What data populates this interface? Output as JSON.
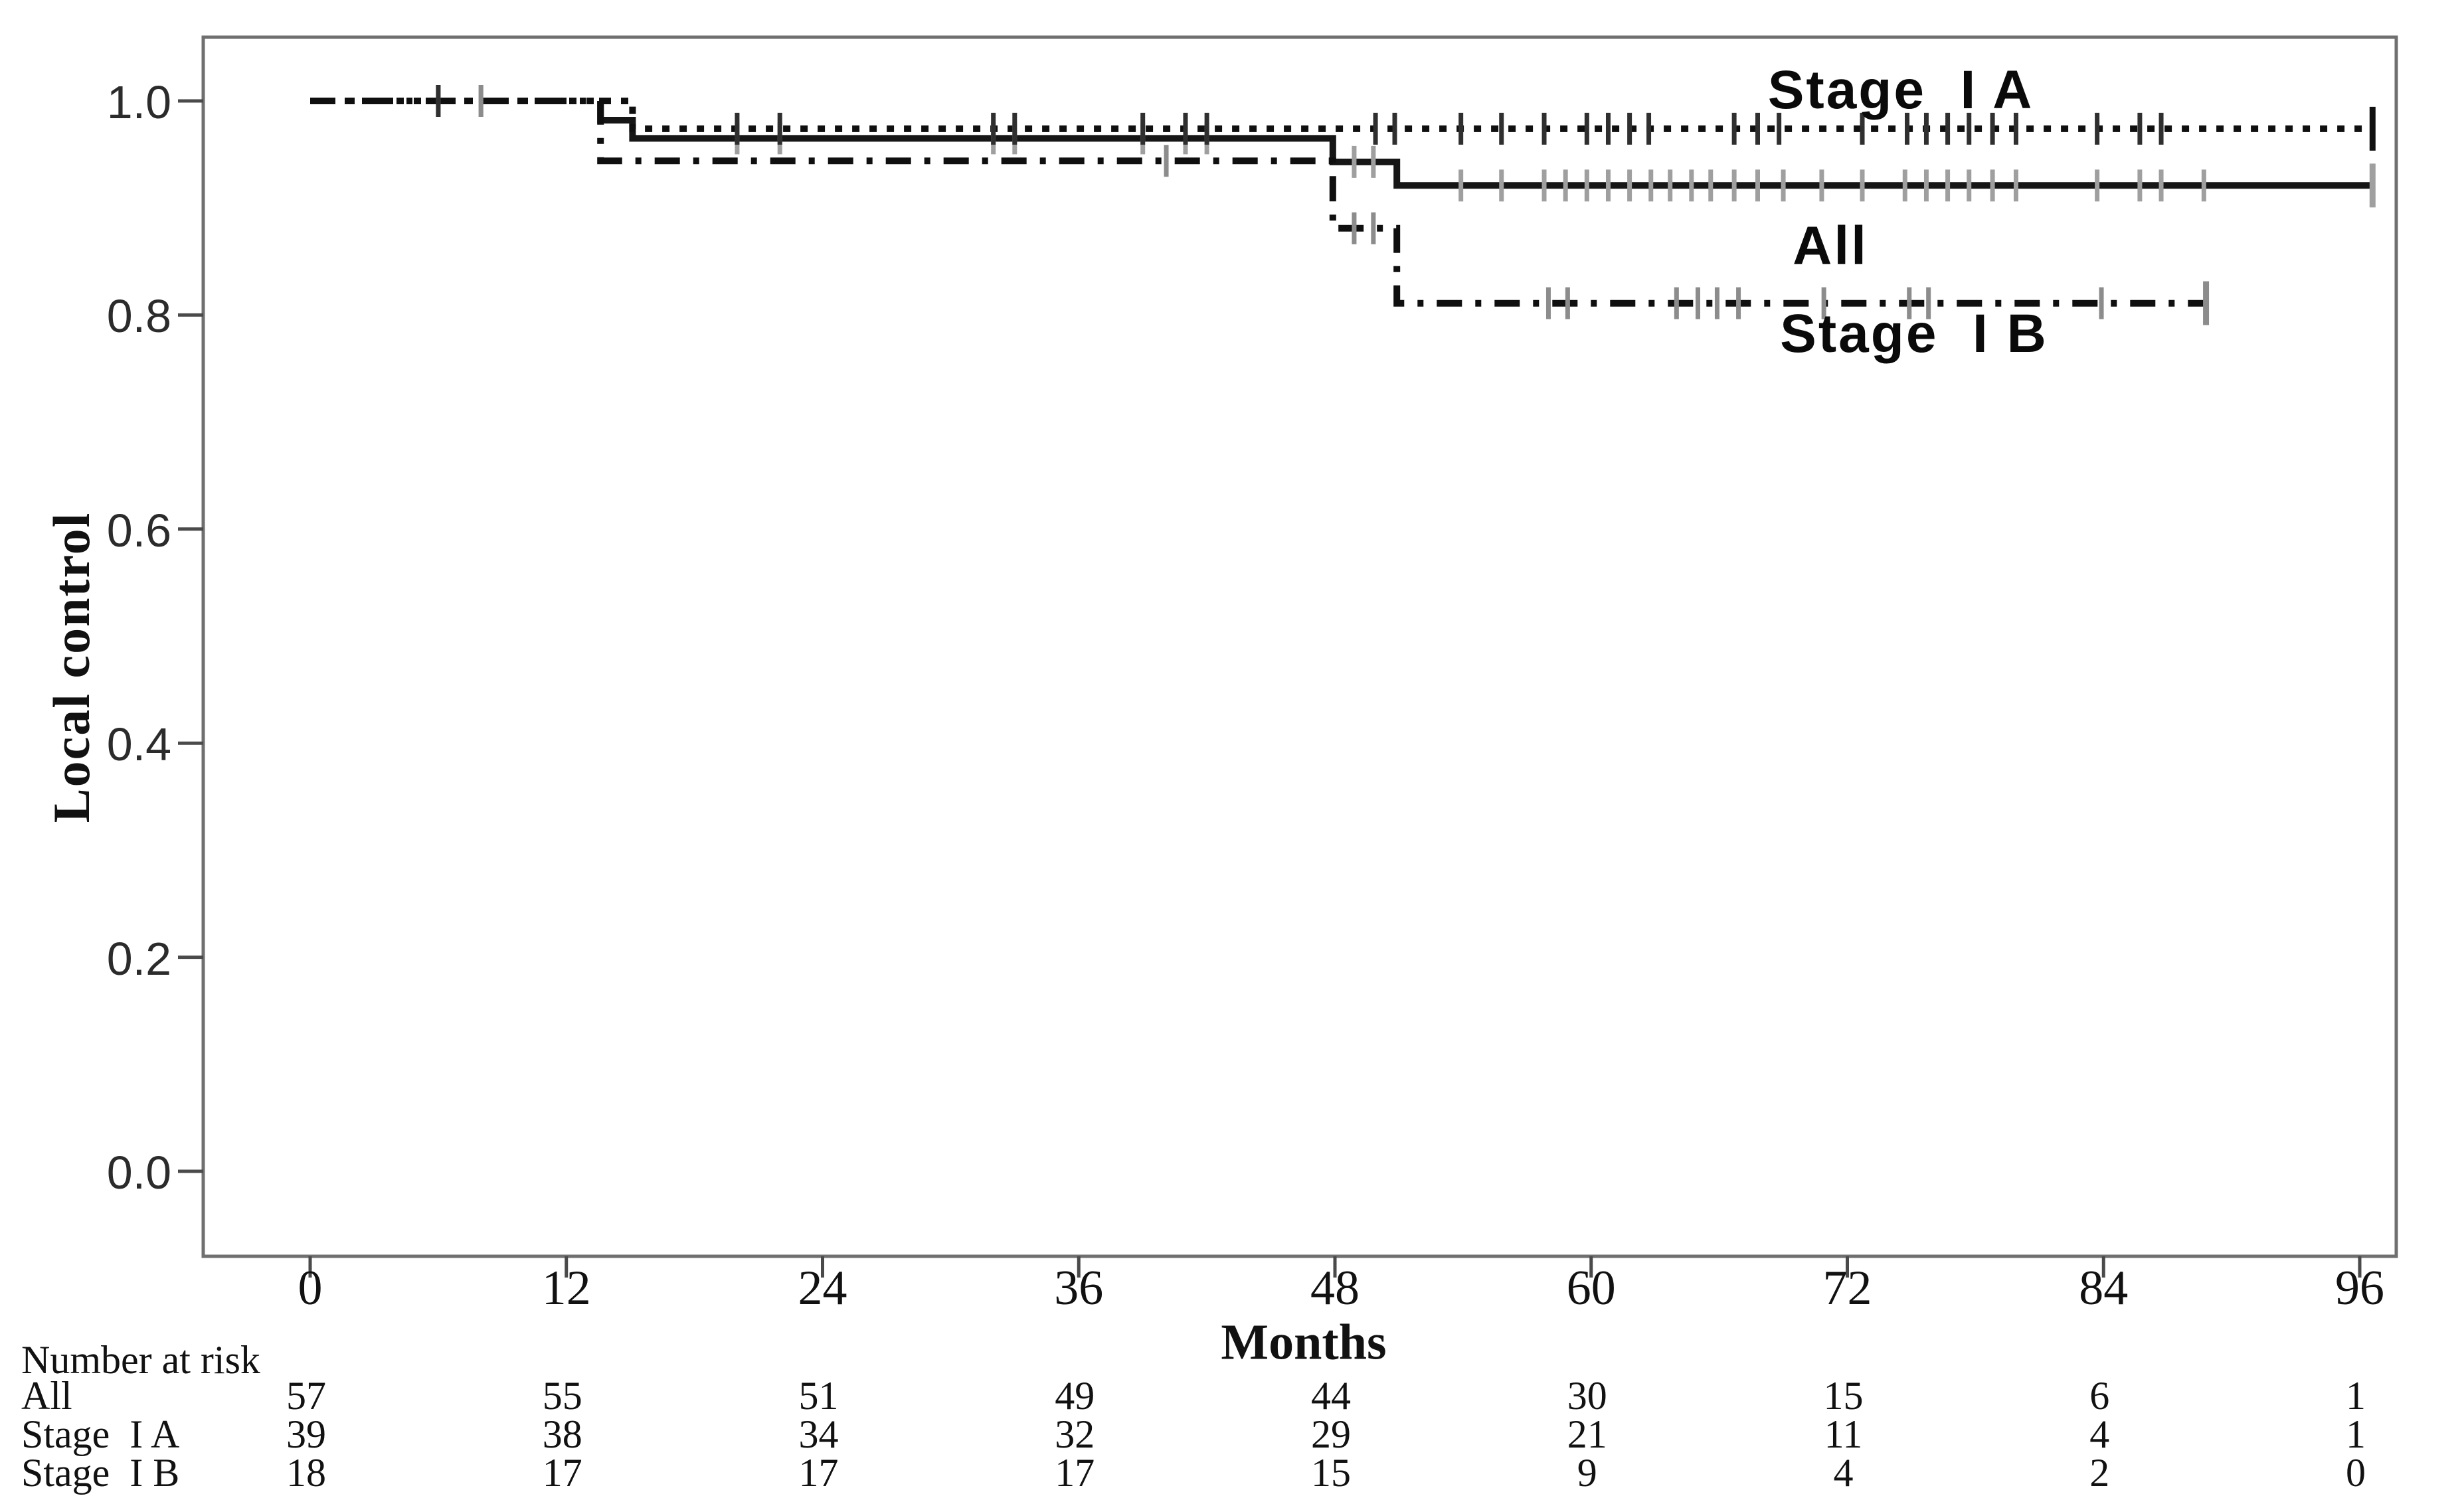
{
  "chart_data": {
    "type": "line",
    "subtype": "kaplan-meier-step",
    "title": "",
    "xlabel": "Months",
    "ylabel": "Local control",
    "x_range": [
      0,
      96
    ],
    "y_range": [
      0.0,
      1.0
    ],
    "x_ticks": [
      0,
      12,
      24,
      36,
      48,
      60,
      72,
      84,
      96
    ],
    "y_ticks": [
      "1.0",
      "0.8",
      "0.6",
      "0.4",
      "0.2",
      "0.0"
    ],
    "grid": "off",
    "legend_position": "inline-annotations",
    "colors": {
      "curve": "#111111",
      "border": "#6f6f6f",
      "axis_tick": "#4a4a4a",
      "censor_gray": "#9f9f9f",
      "censor_dark": "#2f2f2f"
    },
    "series": [
      {
        "id": "all",
        "name": "All",
        "line_style": "solid",
        "color": "#161616",
        "steps": [
          [
            0,
            1.0
          ],
          [
            13.6,
            1.0
          ],
          [
            13.6,
            0.982
          ],
          [
            15.1,
            0.982
          ],
          [
            15.1,
            0.965
          ],
          [
            47.9,
            0.965
          ],
          [
            47.9,
            0.943
          ],
          [
            50.9,
            0.943
          ],
          [
            50.9,
            0.921
          ],
          [
            96.6,
            0.921
          ]
        ],
        "censors": [
          [
            6,
            1.0
          ],
          [
            8,
            1.0
          ],
          [
            20,
            0.965
          ],
          [
            22,
            0.965
          ],
          [
            32,
            0.965
          ],
          [
            33,
            0.965
          ],
          [
            39,
            0.965
          ],
          [
            41,
            0.965
          ],
          [
            42,
            0.965
          ],
          [
            48.9,
            0.943
          ],
          [
            49.8,
            0.943
          ],
          [
            53.9,
            0.921
          ],
          [
            55.8,
            0.921
          ],
          [
            57.8,
            0.921
          ],
          [
            58.8,
            0.921
          ],
          [
            59.8,
            0.921
          ],
          [
            60.8,
            0.921
          ],
          [
            61.8,
            0.921
          ],
          [
            62.8,
            0.921
          ],
          [
            63.7,
            0.921
          ],
          [
            64.7,
            0.921
          ],
          [
            65.6,
            0.921
          ],
          [
            66.7,
            0.921
          ],
          [
            67.8,
            0.921
          ],
          [
            69,
            0.921
          ],
          [
            70.8,
            0.921
          ],
          [
            72.7,
            0.921
          ],
          [
            74.7,
            0.921
          ],
          [
            75.7,
            0.921
          ],
          [
            76.7,
            0.921
          ],
          [
            77.7,
            0.921
          ],
          [
            78.8,
            0.921
          ],
          [
            79.9,
            0.921
          ],
          [
            83.7,
            0.921
          ],
          [
            85.7,
            0.921
          ],
          [
            86.7,
            0.921
          ],
          [
            88.7,
            0.921
          ]
        ],
        "terminal_censor": [
          96.6,
          0.921
        ],
        "censor_color": "#9f9f9f"
      },
      {
        "id": "stage_ib",
        "name": "Stage  I B",
        "line_style": "dash-dot",
        "color": "#0f0f0f",
        "steps": [
          [
            0,
            1.0
          ],
          [
            13.6,
            1.0
          ],
          [
            13.6,
            0.944
          ],
          [
            47.9,
            0.944
          ],
          [
            47.9,
            0.881
          ],
          [
            50.9,
            0.881
          ],
          [
            50.9,
            0.811
          ],
          [
            88.8,
            0.811
          ]
        ],
        "censors": [
          [
            8,
            1.0
          ],
          [
            40.1,
            0.944
          ],
          [
            48.9,
            0.881
          ],
          [
            49.8,
            0.881
          ],
          [
            58,
            0.811
          ],
          [
            58.9,
            0.811
          ],
          [
            64,
            0.811
          ],
          [
            65,
            0.811
          ],
          [
            65.9,
            0.811
          ],
          [
            66.9,
            0.811
          ],
          [
            70.9,
            0.811
          ],
          [
            74.9,
            0.811
          ],
          [
            75.8,
            0.811
          ],
          [
            83.9,
            0.811
          ]
        ],
        "terminal_censor": [
          88.8,
          0.811
        ],
        "censor_color": "#8c8c8c"
      },
      {
        "id": "stage_ia",
        "name": "Stage  I A",
        "line_style": "dotted",
        "color": "#0f0f0f",
        "steps": [
          [
            0,
            1.0
          ],
          [
            15.1,
            1.0
          ],
          [
            15.1,
            0.974
          ],
          [
            96.6,
            0.974
          ]
        ],
        "censors": [
          [
            6,
            1.0
          ],
          [
            20,
            0.974
          ],
          [
            22,
            0.974
          ],
          [
            32,
            0.974
          ],
          [
            33,
            0.974
          ],
          [
            39,
            0.974
          ],
          [
            41,
            0.974
          ],
          [
            42,
            0.974
          ],
          [
            49.9,
            0.974
          ],
          [
            50.8,
            0.974
          ],
          [
            53.9,
            0.974
          ],
          [
            55.8,
            0.974
          ],
          [
            57.8,
            0.974
          ],
          [
            59.8,
            0.974
          ],
          [
            60.8,
            0.974
          ],
          [
            61.8,
            0.974
          ],
          [
            62.7,
            0.974
          ],
          [
            66.7,
            0.974
          ],
          [
            67.8,
            0.974
          ],
          [
            68.8,
            0.974
          ],
          [
            72.7,
            0.974
          ],
          [
            74.8,
            0.974
          ],
          [
            75.7,
            0.974
          ],
          [
            76.7,
            0.974
          ],
          [
            77.7,
            0.974
          ],
          [
            78.8,
            0.974
          ],
          [
            79.9,
            0.974
          ],
          [
            83.7,
            0.974
          ],
          [
            85.7,
            0.974
          ],
          [
            86.7,
            0.974
          ]
        ],
        "terminal_censor": [
          96.6,
          0.974
        ],
        "censor_color": "#2f2f2f"
      }
    ],
    "annotations": {
      "stage_ia": {
        "text": "Stage  I A"
      },
      "all": {
        "text": "All"
      },
      "stage_ib": {
        "text": "Stage  I B"
      }
    },
    "risk_table": {
      "title": "Number at risk",
      "months": [
        0,
        12,
        24,
        36,
        48,
        60,
        72,
        84,
        96
      ],
      "rows": [
        {
          "label": "All",
          "counts": [
            57,
            55,
            51,
            49,
            44,
            30,
            15,
            6,
            1
          ]
        },
        {
          "label": "Stage  I A",
          "counts": [
            39,
            38,
            34,
            32,
            29,
            21,
            11,
            4,
            1
          ]
        },
        {
          "label": "Stage  I B",
          "counts": [
            18,
            17,
            17,
            17,
            15,
            9,
            4,
            2,
            0
          ]
        }
      ]
    }
  }
}
